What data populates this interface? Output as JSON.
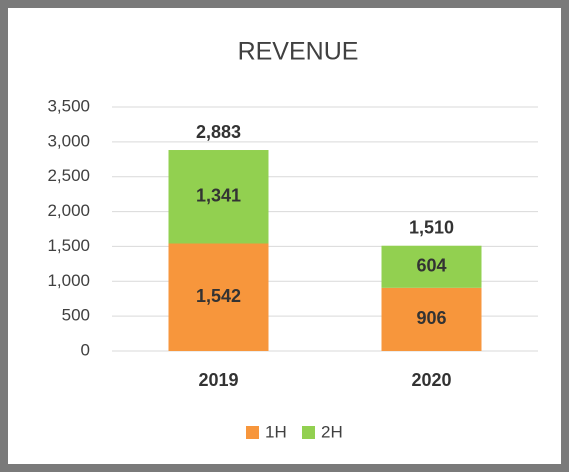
{
  "chart_data": {
    "type": "stacked-bar",
    "title": "REVENUE",
    "categories": [
      "2019",
      "2020"
    ],
    "series": [
      {
        "name": "1H",
        "color": "#f7963c",
        "values": [
          1542,
          906
        ],
        "value_labels": [
          "1,542",
          "906"
        ]
      },
      {
        "name": "2H",
        "color": "#92d050",
        "values": [
          1341,
          604
        ],
        "value_labels": [
          "1,341",
          "604"
        ]
      }
    ],
    "totals": [
      2883,
      1510
    ],
    "total_labels": [
      "2,883",
      "1,510"
    ],
    "ylim": [
      0,
      3500
    ],
    "yticks": [
      0,
      {
        "value": 500,
        "label": "500"
      },
      {
        "value": 1000,
        "label": "1,000"
      },
      {
        "value": 1500,
        "label": "1,500"
      },
      {
        "value": 2000,
        "label": "2,000"
      },
      {
        "value": 2500,
        "label": "2,500"
      },
      {
        "value": 3000,
        "label": "3,000"
      },
      {
        "value": 3500,
        "label": "3,500"
      }
    ],
    "grid": true,
    "legend": "bottom"
  }
}
